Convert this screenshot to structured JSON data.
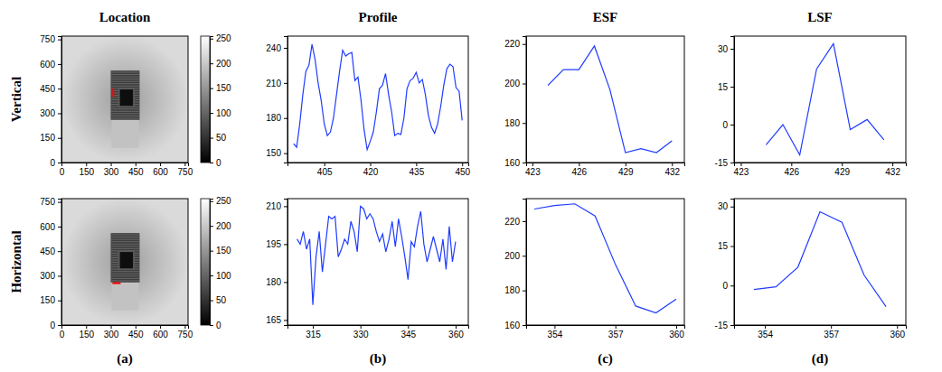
{
  "rows": [
    "Vertical",
    "Horizontal"
  ],
  "columns": [
    {
      "title": "Location",
      "label": "(a)"
    },
    {
      "title": "Profile",
      "label": "(b)"
    },
    {
      "title": "ESF",
      "label": "(c)"
    },
    {
      "title": "LSF",
      "label": "(d)"
    }
  ],
  "chart_data": [
    {
      "type": "image",
      "xlim": [
        0,
        770
      ],
      "ylim": [
        0,
        770
      ],
      "xticks": [
        0,
        150,
        300,
        450,
        600,
        750
      ],
      "yticks": [
        0,
        150,
        300,
        450,
        600,
        750
      ],
      "colorbar": {
        "range": [
          0,
          255
        ],
        "ticks": [
          0,
          50,
          100,
          150,
          200,
          250
        ]
      },
      "profile_line": {
        "x": [
          315,
          315
        ],
        "y": [
          400,
          450
        ],
        "color": "#ff0000"
      }
    },
    {
      "type": "line",
      "color": "#1f3cff",
      "xlim": [
        393,
        452
      ],
      "ylim": [
        142,
        250
      ],
      "xticks": [
        405,
        420,
        435,
        450
      ],
      "yticks": [
        150,
        180,
        210,
        240
      ],
      "x": [
        395,
        396,
        397,
        398,
        399,
        400,
        401,
        402,
        403,
        404,
        405,
        406,
        407,
        408,
        409,
        410,
        411,
        412,
        413,
        414,
        415,
        416,
        417,
        418,
        419,
        420,
        421,
        422,
        423,
        424,
        425,
        426,
        427,
        428,
        429,
        430,
        431,
        432,
        433,
        434,
        435,
        436,
        437,
        438,
        439,
        440,
        441,
        442,
        443,
        444,
        445,
        446,
        447,
        448,
        449,
        450
      ],
      "values": [
        158,
        155,
        175,
        200,
        220,
        225,
        243,
        230,
        210,
        195,
        175,
        165,
        168,
        180,
        200,
        220,
        238,
        233,
        235,
        236,
        212,
        215,
        195,
        170,
        153,
        160,
        168,
        185,
        205,
        208,
        218,
        200,
        185,
        165,
        167,
        166,
        180,
        205,
        212,
        214,
        219,
        210,
        213,
        200,
        182,
        172,
        167,
        175,
        190,
        208,
        222,
        226,
        224,
        206,
        203,
        178
      ]
    },
    {
      "type": "line",
      "color": "#1f3cff",
      "xlim": [
        422.6,
        432.8
      ],
      "ylim": [
        160,
        224
      ],
      "xticks": [
        423,
        426,
        429,
        432
      ],
      "yticks": [
        160,
        180,
        200,
        220
      ],
      "x": [
        424,
        425,
        426,
        427,
        428,
        429,
        430,
        431,
        432
      ],
      "values": [
        199,
        207,
        207,
        219,
        197,
        165,
        167,
        165,
        171
      ]
    },
    {
      "type": "line",
      "color": "#1f3cff",
      "xlim": [
        422.6,
        432.8
      ],
      "ylim": [
        -15,
        35
      ],
      "xticks": [
        423,
        426,
        429,
        432
      ],
      "yticks": [
        -15,
        0,
        15,
        30
      ],
      "x": [
        424.5,
        425.5,
        426.5,
        427.5,
        428.5,
        429.5,
        430.5,
        431.5
      ],
      "values": [
        -8,
        0,
        -12,
        22,
        32,
        -2,
        2,
        -6
      ]
    },
    {
      "type": "image",
      "xlim": [
        0,
        770
      ],
      "ylim": [
        0,
        770
      ],
      "xticks": [
        0,
        150,
        300,
        450,
        600,
        750
      ],
      "yticks": [
        0,
        150,
        300,
        450,
        600,
        750
      ],
      "colorbar": {
        "range": [
          0,
          255
        ],
        "ticks": [
          0,
          50,
          100,
          150,
          200,
          250
        ]
      },
      "profile_line": {
        "x": [
          310,
          360
        ],
        "y": [
          255,
          255
        ],
        "color": "#ff0000"
      }
    },
    {
      "type": "line",
      "color": "#1f3cff",
      "xlim": [
        307,
        364
      ],
      "ylim": [
        163,
        213
      ],
      "xticks": [
        315,
        330,
        345,
        360
      ],
      "yticks": [
        165,
        180,
        195,
        210
      ],
      "x": [
        310,
        311,
        312,
        313,
        314,
        315,
        316,
        317,
        318,
        319,
        320,
        321,
        322,
        323,
        324,
        325,
        326,
        327,
        328,
        329,
        330,
        331,
        332,
        333,
        334,
        335,
        336,
        337,
        338,
        339,
        340,
        341,
        342,
        343,
        344,
        345,
        346,
        347,
        348,
        349,
        350,
        351,
        352,
        353,
        354,
        355,
        356,
        357,
        358,
        359,
        360
      ],
      "values": [
        197,
        195,
        200,
        193,
        197,
        171,
        190,
        200,
        184,
        195,
        206,
        205,
        206,
        190,
        193,
        197,
        195,
        204,
        200,
        192,
        210,
        209,
        205,
        207,
        205,
        200,
        196,
        199,
        192,
        197,
        204,
        194,
        205,
        198,
        190,
        181,
        196,
        194,
        202,
        208,
        195,
        188,
        193,
        198,
        193,
        188,
        197,
        185,
        202,
        188,
        196
      ]
    },
    {
      "type": "line",
      "color": "#1f3cff",
      "xlim": [
        352.6,
        360.4
      ],
      "ylim": [
        160,
        233
      ],
      "xticks": [
        354,
        357,
        360
      ],
      "yticks": [
        160,
        180,
        200,
        220
      ],
      "x": [
        353,
        354,
        355,
        356,
        357,
        358,
        359,
        360
      ],
      "values": [
        227,
        229,
        230,
        223,
        195,
        171,
        167,
        175
      ]
    },
    {
      "type": "line",
      "color": "#1f3cff",
      "xlim": [
        352.6,
        360.4
      ],
      "ylim": [
        -15,
        33
      ],
      "xticks": [
        354,
        357,
        360
      ],
      "yticks": [
        -15,
        0,
        15,
        30
      ],
      "x": [
        353.5,
        354.5,
        355.5,
        356.5,
        357.5,
        358.5,
        359.5
      ],
      "values": [
        -1.5,
        -0.5,
        7,
        28,
        24,
        4,
        -8
      ]
    }
  ]
}
